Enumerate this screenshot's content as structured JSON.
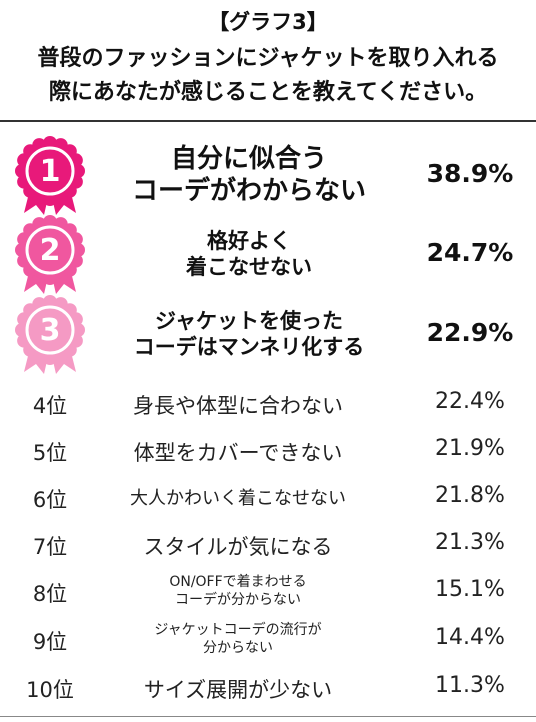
{
  "title": {
    "bracket": "【グラフ3】",
    "line1": "普段のファッションにジャケットを取り入れる",
    "line2": "際にあなたが感じることを教えてください。"
  },
  "chart_data": {
    "type": "table",
    "columns": [
      "rank",
      "item",
      "percent"
    ],
    "rows": [
      {
        "rank": "1",
        "lines": [
          "自分に似合う",
          "コーデがわからない"
        ],
        "value": 38.9,
        "display": "38.9%"
      },
      {
        "rank": "2",
        "lines": [
          "格好よく",
          "着こなせない"
        ],
        "value": 24.7,
        "display": "24.7%"
      },
      {
        "rank": "3",
        "lines": [
          "ジャケットを使った",
          "コーデはマンネリ化する"
        ],
        "value": 22.9,
        "display": "22.9%"
      },
      {
        "rank": "4位",
        "lines": [
          "身長や体型に合わない"
        ],
        "value": 22.4,
        "display": "22.4%"
      },
      {
        "rank": "5位",
        "lines": [
          "体型をカバーできない"
        ],
        "value": 21.9,
        "display": "21.9%"
      },
      {
        "rank": "6位",
        "lines": [
          "大人かわいく着こなせない"
        ],
        "value": 21.8,
        "display": "21.8%"
      },
      {
        "rank": "7位",
        "lines": [
          "スタイルが気になる"
        ],
        "value": 21.3,
        "display": "21.3%"
      },
      {
        "rank": "8位",
        "lines": [
          "ON/OFFで着まわせる",
          "コーデが分からない"
        ],
        "value": 15.1,
        "display": "15.1%"
      },
      {
        "rank": "9位",
        "lines": [
          "ジャケットコーデの流行が",
          "分からない"
        ],
        "value": 14.4,
        "display": "14.4%"
      },
      {
        "rank": "10位",
        "lines": [
          "サイズ展開が少ない"
        ],
        "value": 11.3,
        "display": "11.3%"
      }
    ],
    "medal_colors": [
      "#e8197a",
      "#f0579f",
      "#f59ac4"
    ]
  }
}
